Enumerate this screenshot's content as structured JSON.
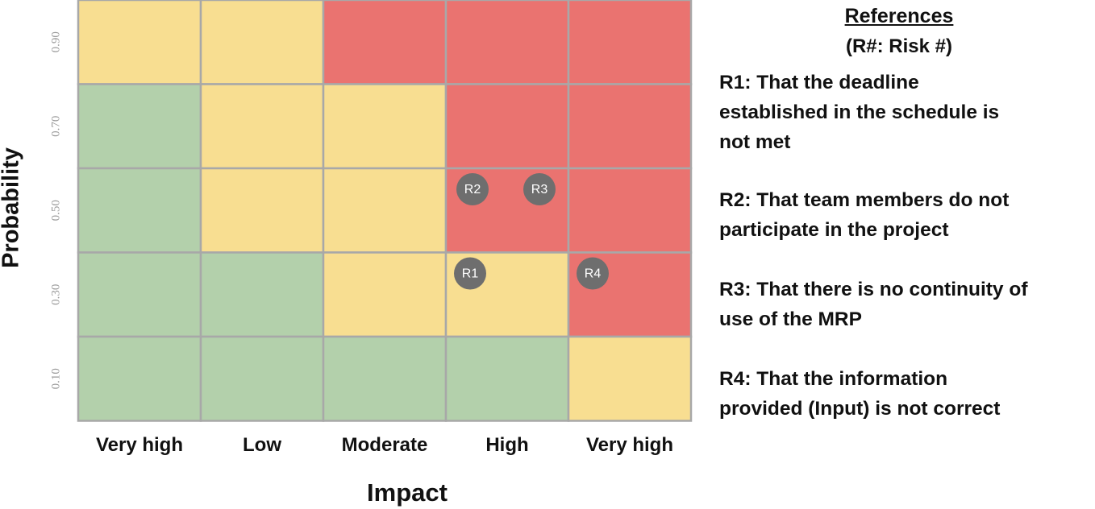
{
  "chart_data": {
    "type": "heatmap",
    "xlabel": "Impact",
    "ylabel": "Probability",
    "x_categories": [
      "Very high",
      "Low",
      "Moderate",
      "High",
      "Very high"
    ],
    "y_categories": [
      "0.90",
      "0.70",
      "0.50",
      "0.30",
      "0.10"
    ],
    "cell_levels": [
      [
        "medium",
        "medium",
        "high",
        "high",
        "high"
      ],
      [
        "low",
        "medium",
        "medium",
        "high",
        "high"
      ],
      [
        "low",
        "medium",
        "medium",
        "high",
        "high"
      ],
      [
        "low",
        "low",
        "medium",
        "medium",
        "high"
      ],
      [
        "low",
        "low",
        "low",
        "low",
        "medium"
      ]
    ],
    "level_colors": {
      "low": "#b3d0ab",
      "medium": "#f8de91",
      "high": "#ea7370"
    },
    "grid_color": "#a8a8a8",
    "risks": [
      {
        "label": "R1",
        "impact": "High",
        "probability": "0.30"
      },
      {
        "label": "R2",
        "impact": "High",
        "probability": "0.50"
      },
      {
        "label": "R3",
        "impact": "High",
        "probability": "0.50"
      },
      {
        "label": "R4",
        "impact": "Very high",
        "probability": "0.30"
      }
    ],
    "marker_color": "#6e6e6e"
  },
  "references": {
    "title": "References",
    "subtitle": "(R#: Risk #)",
    "items": [
      {
        "id": "R1",
        "text": "R1: That the deadline\nestablished in    the schedule is\nnot met"
      },
      {
        "id": "R2",
        "text": "R2: That team members do not\nparticipate in the project"
      },
      {
        "id": "R3",
        "text": "R3: That there is no continuity of\nuse of the MRP"
      },
      {
        "id": "R4",
        "text": "R4: That the information\nprovided (Input) is not correct"
      }
    ]
  }
}
